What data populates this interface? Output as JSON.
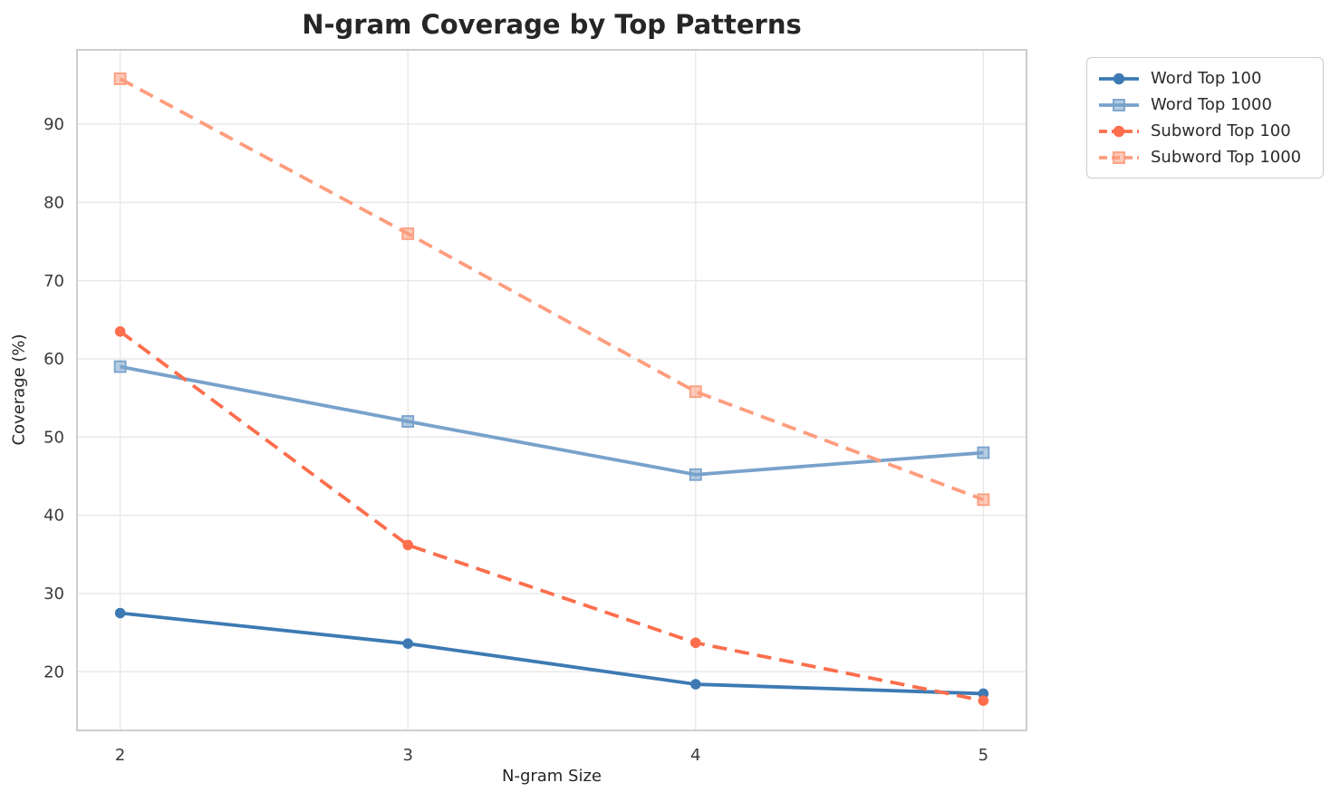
{
  "chart_data": {
    "type": "line",
    "title": "N-gram Coverage by Top Patterns",
    "xlabel": "N-gram Size",
    "ylabel": "Coverage (%)",
    "x": [
      2,
      3,
      4,
      5
    ],
    "xtick_labels": [
      "2",
      "3",
      "4",
      "5"
    ],
    "yticks": [
      20,
      30,
      40,
      50,
      60,
      70,
      80,
      90
    ],
    "ytick_labels": [
      "20",
      "30",
      "40",
      "50",
      "60",
      "70",
      "80",
      "90"
    ],
    "xlim": [
      1.85,
      5.15
    ],
    "ylim": [
      12.5,
      99.5
    ],
    "grid": true,
    "legend_position": "outside-top-right",
    "colors": {
      "grid": "#e9e9e9",
      "spine": "#c9c9c9",
      "text": "#262626",
      "tick_text": "#3a3a3a"
    },
    "series": [
      {
        "name": "Word Top 100",
        "values": [
          27.5,
          23.6,
          18.4,
          17.2
        ],
        "color": "#3d7ab3",
        "marker": "circle",
        "dash": "solid"
      },
      {
        "name": "Word Top 1000",
        "values": [
          59.0,
          52.0,
          45.2,
          48.0
        ],
        "color": "#78a2cb",
        "marker": "square",
        "dash": "solid"
      },
      {
        "name": "Subword Top 100",
        "values": [
          63.5,
          36.2,
          23.7,
          16.3
        ],
        "color": "#fc6e4c",
        "marker": "circle",
        "dash": "dashed"
      },
      {
        "name": "Subword Top 1000",
        "values": [
          95.8,
          76.0,
          55.8,
          42.0
        ],
        "color": "#fd9d7e",
        "marker": "square",
        "dash": "dashed"
      }
    ]
  }
}
